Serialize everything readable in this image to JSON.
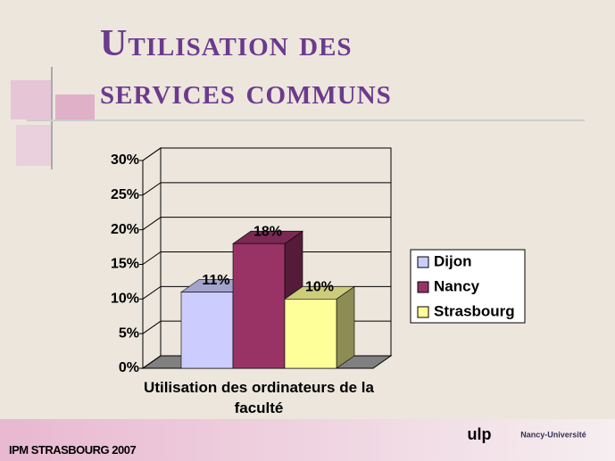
{
  "chart_data": {
    "type": "bar3d",
    "title": "Utilisation des services communs",
    "categories": [
      "Utilisation des ordinateurs de la faculté"
    ],
    "series": [
      {
        "name": "Dijon",
        "color": "#ccccff",
        "values": [
          11
        ],
        "value_labels": [
          "11%"
        ]
      },
      {
        "name": "Nancy",
        "color": "#993366",
        "values": [
          18
        ],
        "value_labels": [
          "18%"
        ]
      },
      {
        "name": "Strasbourg",
        "color": "#ffff99",
        "values": [
          10
        ],
        "value_labels": [
          "10%"
        ]
      }
    ],
    "ylim": [
      0,
      30
    ],
    "yticks": [
      {
        "value": 0,
        "label": "0%"
      },
      {
        "value": 5,
        "label": "5%"
      },
      {
        "value": 10,
        "label": "10%"
      },
      {
        "value": 15,
        "label": "15%"
      },
      {
        "value": 20,
        "label": "20%"
      },
      {
        "value": 25,
        "label": "25%"
      },
      {
        "value": 30,
        "label": "30%"
      }
    ],
    "grid": true,
    "legend": "right"
  },
  "footer": "IPM STRASBOURG 2007",
  "logos": [
    "ulp",
    "Nancy-Université"
  ]
}
